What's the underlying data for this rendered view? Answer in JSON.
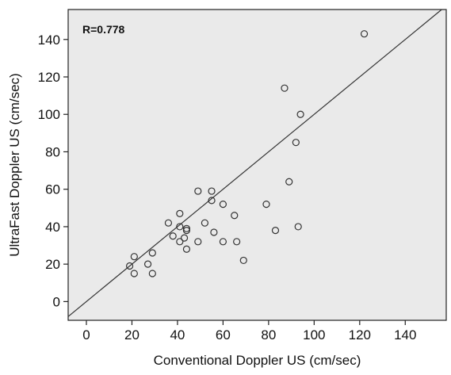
{
  "chart_data": {
    "type": "scatter",
    "title": "",
    "annotation": "R=0.778",
    "xlabel": "Conventional Doppler US (cm/sec)",
    "ylabel": "UltraFast Doppler US (cm/sec)",
    "xlim": [
      -8,
      158
    ],
    "ylim": [
      -10,
      156
    ],
    "xticks": [
      0,
      20,
      40,
      60,
      80,
      100,
      120,
      140
    ],
    "yticks": [
      0,
      20,
      40,
      60,
      80,
      100,
      120,
      140
    ],
    "reference_line": "identity (y = x)",
    "grid": false,
    "colors": {
      "plot_bg": "#eaeaea",
      "line": "#333333",
      "marker": "#333333"
    },
    "points": [
      {
        "x": 19,
        "y": 19
      },
      {
        "x": 21,
        "y": 24
      },
      {
        "x": 21,
        "y": 15
      },
      {
        "x": 27,
        "y": 20
      },
      {
        "x": 29,
        "y": 26
      },
      {
        "x": 29,
        "y": 15
      },
      {
        "x": 36,
        "y": 42
      },
      {
        "x": 38,
        "y": 35
      },
      {
        "x": 41,
        "y": 47
      },
      {
        "x": 41,
        "y": 40
      },
      {
        "x": 41,
        "y": 32
      },
      {
        "x": 43,
        "y": 34
      },
      {
        "x": 44,
        "y": 39
      },
      {
        "x": 44,
        "y": 38
      },
      {
        "x": 44,
        "y": 28
      },
      {
        "x": 49,
        "y": 59
      },
      {
        "x": 49,
        "y": 32
      },
      {
        "x": 52,
        "y": 42
      },
      {
        "x": 55,
        "y": 59
      },
      {
        "x": 55,
        "y": 54
      },
      {
        "x": 56,
        "y": 37
      },
      {
        "x": 60,
        "y": 52
      },
      {
        "x": 60,
        "y": 32
      },
      {
        "x": 65,
        "y": 46
      },
      {
        "x": 66,
        "y": 32
      },
      {
        "x": 69,
        "y": 22
      },
      {
        "x": 79,
        "y": 52
      },
      {
        "x": 83,
        "y": 38
      },
      {
        "x": 87,
        "y": 114
      },
      {
        "x": 89,
        "y": 64
      },
      {
        "x": 92,
        "y": 85
      },
      {
        "x": 93,
        "y": 40
      },
      {
        "x": 94,
        "y": 100
      },
      {
        "x": 122,
        "y": 143
      }
    ]
  }
}
